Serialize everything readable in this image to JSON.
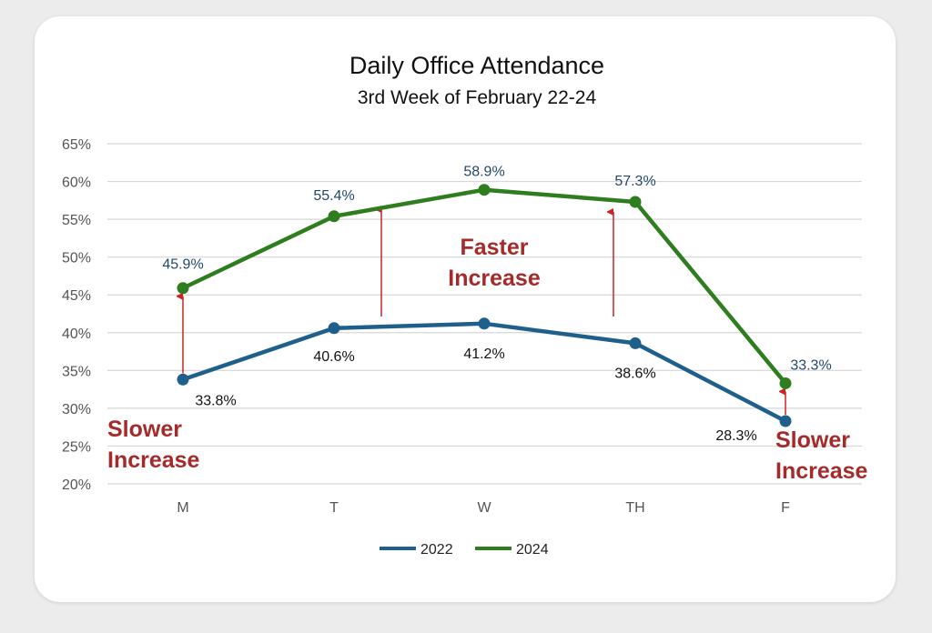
{
  "chart_data": {
    "type": "line",
    "title": "Daily Office Attendance",
    "subtitle": "3rd Week of February 22-24",
    "categories": [
      "M",
      "T",
      "W",
      "TH",
      "F"
    ],
    "y_ticks": [
      "20%",
      "25%",
      "30%",
      "35%",
      "40%",
      "45%",
      "50%",
      "55%",
      "60%",
      "65%"
    ],
    "ylim": [
      20,
      65
    ],
    "grid": true,
    "legend_position": "bottom",
    "series": [
      {
        "name": "2022",
        "values": [
          33.8,
          40.6,
          41.2,
          38.6,
          28.3
        ],
        "labels": [
          "33.8%",
          "40.6%",
          "41.2%",
          "38.6%",
          "28.3%"
        ],
        "color": "#1f5f8b"
      },
      {
        "name": "2024",
        "values": [
          45.9,
          55.4,
          58.9,
          57.3,
          33.3
        ],
        "labels": [
          "45.9%",
          "55.4%",
          "58.9%",
          "57.3%",
          "33.3%"
        ],
        "color": "#2e7d1f"
      }
    ],
    "annotations": [
      {
        "line1": "Slower",
        "line2": "Increase"
      },
      {
        "line1": "Faster",
        "line2": "Increase"
      },
      {
        "line1": "Slower",
        "line2": "Increase"
      }
    ],
    "arrow_color": "#cc2222"
  }
}
